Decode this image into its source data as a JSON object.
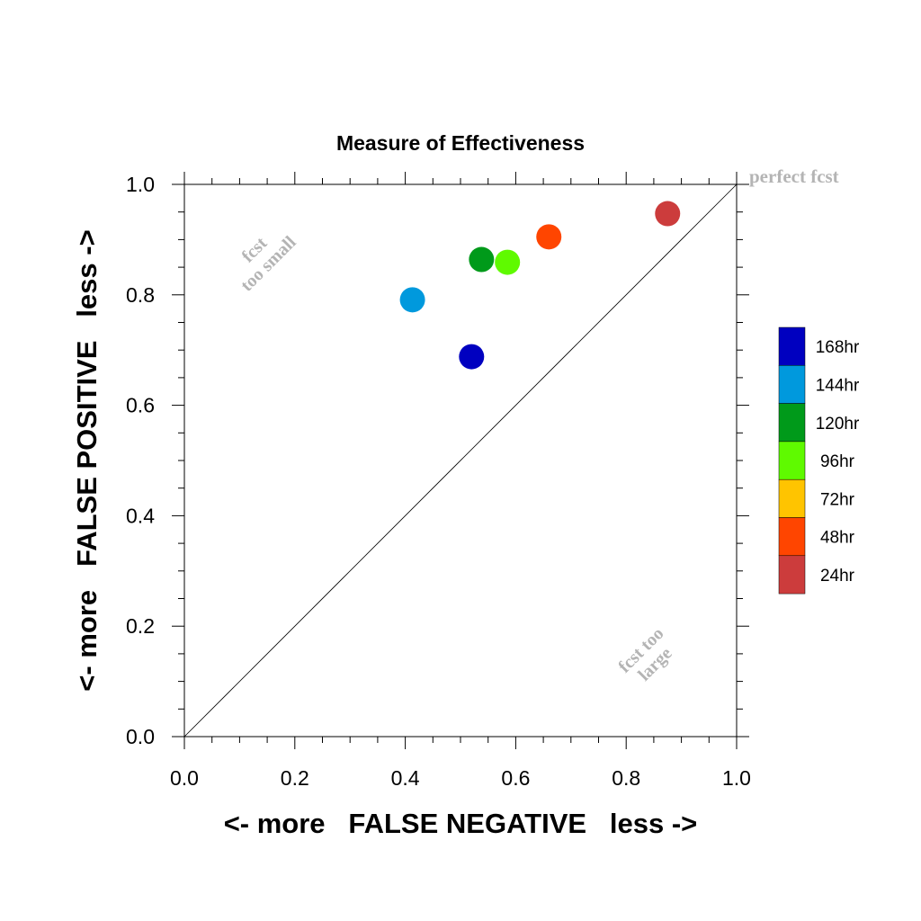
{
  "chart_data": {
    "type": "scatter",
    "title": "Measure of Effectiveness",
    "xlabel": "<- more   FALSE NEGATIVE   less ->",
    "ylabel": "<- more   FALSE POSITIVE   less ->",
    "xlim": [
      0.0,
      1.0
    ],
    "ylim": [
      0.0,
      1.0
    ],
    "xticks": [
      "0.0",
      "0.2",
      "0.4",
      "0.6",
      "0.8",
      "1.0"
    ],
    "yticks": [
      "0.0",
      "0.2",
      "0.4",
      "0.6",
      "0.8",
      "1.0"
    ],
    "grid": false,
    "diagonal_line": true,
    "annotations": {
      "perfect": "perfect fcst",
      "too_small_1": "fcst",
      "too_small_2": "too small",
      "too_large_1": "fcst too",
      "too_large_2": "large"
    },
    "legend_placement": "right",
    "legend": [
      {
        "label": "168hr",
        "color": "#0000c0"
      },
      {
        "label": "144hr",
        "color": "#0099dd"
      },
      {
        "label": "120hr",
        "color": "#009a1a"
      },
      {
        "label": "96hr",
        "color": "#5ffa00"
      },
      {
        "label": "72hr",
        "color": "#ffc400"
      },
      {
        "label": "48hr",
        "color": "#ff4500"
      },
      {
        "label": "24hr",
        "color": "#cc3c3c"
      }
    ],
    "series": [
      {
        "name": "168hr",
        "x": 0.52,
        "y": 0.688,
        "color": "#0000c0"
      },
      {
        "name": "144hr",
        "x": 0.413,
        "y": 0.791,
        "color": "#0099dd"
      },
      {
        "name": "120hr",
        "x": 0.538,
        "y": 0.864,
        "color": "#009a1a"
      },
      {
        "name": "96hr",
        "x": 0.585,
        "y": 0.859,
        "color": "#5ffa00"
      },
      {
        "name": "48hr",
        "x": 0.66,
        "y": 0.905,
        "color": "#ff4500"
      },
      {
        "name": "24hr",
        "x": 0.875,
        "y": 0.947,
        "color": "#cc3c3c"
      }
    ]
  }
}
